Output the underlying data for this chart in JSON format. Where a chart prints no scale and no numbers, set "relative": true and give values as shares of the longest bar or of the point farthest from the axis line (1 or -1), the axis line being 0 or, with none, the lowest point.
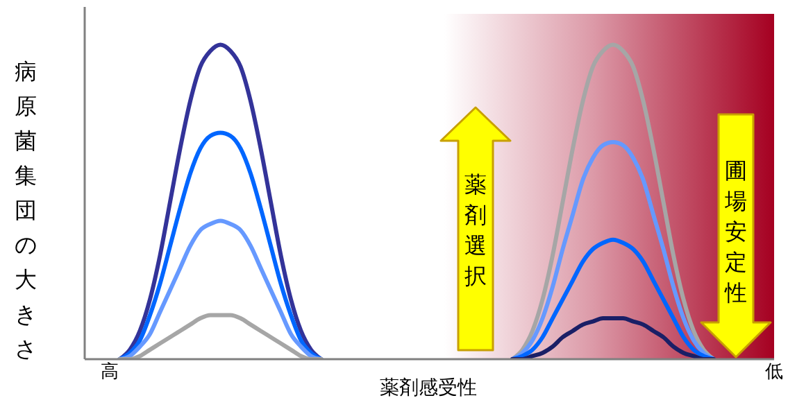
{
  "chart_data": {
    "type": "line",
    "relative": true,
    "ylabel": "病原菌集団の大きさ",
    "xlabel": "薬剤感受性",
    "annotations": [
      "薬剤選択",
      "圃場安定性"
    ],
    "categories": [
      "高",
      null,
      null,
      null,
      null,
      null,
      null,
      null,
      null,
      null,
      null,
      null,
      null,
      null,
      null,
      null,
      null,
      null,
      null,
      null,
      null,
      null,
      null,
      null,
      null,
      null,
      null,
      null,
      null,
      null,
      null,
      null,
      null,
      null,
      null,
      null,
      null,
      null,
      null,
      null,
      null,
      null,
      null,
      null,
      null,
      null,
      null,
      null,
      null,
      null,
      null,
      null,
      null,
      null,
      null,
      null,
      null,
      null,
      null,
      null,
      null,
      null,
      null,
      null,
      null,
      null,
      "低"
    ],
    "series": [
      {
        "color": "#333399",
        "values": [
          null,
          0,
          0.03,
          0.09,
          0.19,
          0.33,
          0.5,
          0.67,
          0.82,
          0.93,
          0.98,
          1,
          0.98,
          0.93,
          0.82,
          0.67,
          0.5,
          0.33,
          0.19,
          0.09,
          0.03,
          0,
          null,
          null,
          null,
          null,
          null,
          null,
          null,
          null,
          null,
          null,
          null,
          null,
          null,
          null,
          null,
          null,
          null,
          null,
          null,
          null,
          null,
          null,
          null,
          null,
          null,
          null,
          null,
          null,
          null,
          null,
          null,
          null,
          null,
          null,
          null,
          null,
          null,
          null,
          null,
          null,
          null,
          null,
          null,
          null,
          null
        ]
      },
      {
        "color": "#0066ff",
        "values": [
          null,
          0,
          0.02,
          0.06,
          0.14,
          0.24,
          0.36,
          0.48,
          0.59,
          0.67,
          0.71,
          0.72,
          0.71,
          0.67,
          0.59,
          0.48,
          0.36,
          0.24,
          0.14,
          0.06,
          0.02,
          0,
          null,
          null,
          null,
          null,
          null,
          null,
          null,
          null,
          null,
          null,
          null,
          null,
          null,
          null,
          null,
          null,
          null,
          null,
          null,
          null,
          null,
          null,
          null,
          null,
          null,
          null,
          null,
          null,
          null,
          null,
          null,
          null,
          null,
          null,
          null,
          null,
          null,
          null,
          null,
          null,
          null,
          null,
          null,
          null,
          null
        ]
      },
      {
        "color": "#6699ff",
        "values": [
          null,
          0,
          0.01,
          0.04,
          0.08,
          0.15,
          0.22,
          0.29,
          0.36,
          0.41,
          0.43,
          0.44,
          0.43,
          0.41,
          0.36,
          0.29,
          0.22,
          0.15,
          0.08,
          0.04,
          0.01,
          0,
          null,
          null,
          null,
          null,
          null,
          null,
          null,
          null,
          null,
          null,
          null,
          null,
          null,
          null,
          null,
          null,
          null,
          null,
          null,
          null,
          null,
          null,
          null,
          null,
          null,
          null,
          null,
          null,
          null,
          null,
          null,
          null,
          null,
          null,
          null,
          null,
          null,
          null,
          null,
          null,
          null,
          null,
          null,
          null,
          null
        ]
      },
      {
        "color": "#a6a6a6",
        "values": [
          null,
          0,
          0,
          0.01,
          0.03,
          0.05,
          0.07,
          0.09,
          0.11,
          0.13,
          0.14,
          0.14,
          0.14,
          0.13,
          0.11,
          0.09,
          0.07,
          0.05,
          0.03,
          0.01,
          0,
          0,
          null,
          null,
          null,
          null,
          null,
          null,
          null,
          null,
          null,
          null,
          null,
          null,
          null,
          null,
          null,
          null,
          null,
          null,
          null,
          null,
          null,
          null,
          null,
          null,
          null,
          null,
          null,
          null,
          null,
          null,
          null,
          null,
          null,
          null,
          null,
          null,
          null,
          null,
          null,
          null,
          null,
          null,
          null,
          null,
          null
        ]
      },
      {
        "color": "#a6a6a6",
        "values": [
          null,
          null,
          null,
          null,
          null,
          null,
          null,
          null,
          null,
          null,
          null,
          null,
          null,
          null,
          null,
          null,
          null,
          null,
          null,
          null,
          null,
          null,
          null,
          null,
          null,
          null,
          null,
          null,
          null,
          null,
          null,
          null,
          null,
          null,
          null,
          null,
          null,
          null,
          null,
          null,
          0,
          0.03,
          0.09,
          0.19,
          0.33,
          0.5,
          0.67,
          0.82,
          0.93,
          0.98,
          1,
          0.98,
          0.93,
          0.82,
          0.67,
          0.5,
          0.33,
          0.19,
          0.09,
          0.03,
          0,
          null,
          null,
          null,
          null,
          null,
          null
        ]
      },
      {
        "color": "#6699ff",
        "values": [
          null,
          null,
          null,
          null,
          null,
          null,
          null,
          null,
          null,
          null,
          null,
          null,
          null,
          null,
          null,
          null,
          null,
          null,
          null,
          null,
          null,
          null,
          null,
          null,
          null,
          null,
          null,
          null,
          null,
          null,
          null,
          null,
          null,
          null,
          null,
          null,
          null,
          null,
          null,
          null,
          0,
          0.02,
          0.06,
          0.13,
          0.23,
          0.35,
          0.46,
          0.57,
          0.64,
          0.68,
          0.69,
          0.68,
          0.64,
          0.57,
          0.46,
          0.35,
          0.23,
          0.13,
          0.06,
          0.02,
          0,
          null,
          null,
          null,
          null,
          null,
          null
        ]
      },
      {
        "color": "#0066ff",
        "values": [
          null,
          null,
          null,
          null,
          null,
          null,
          null,
          null,
          null,
          null,
          null,
          null,
          null,
          null,
          null,
          null,
          null,
          null,
          null,
          null,
          null,
          null,
          null,
          null,
          null,
          null,
          null,
          null,
          null,
          null,
          null,
          null,
          null,
          null,
          null,
          null,
          null,
          null,
          null,
          null,
          0,
          0.01,
          0.03,
          0.07,
          0.13,
          0.19,
          0.25,
          0.31,
          0.35,
          0.37,
          0.38,
          0.37,
          0.35,
          0.31,
          0.25,
          0.19,
          0.13,
          0.07,
          0.03,
          0.01,
          0,
          null,
          null,
          null,
          null,
          null,
          null
        ]
      },
      {
        "color": "#1a1f66",
        "values": [
          null,
          null,
          null,
          null,
          null,
          null,
          null,
          null,
          null,
          null,
          null,
          null,
          null,
          null,
          null,
          null,
          null,
          null,
          null,
          null,
          null,
          null,
          null,
          null,
          null,
          null,
          null,
          null,
          null,
          null,
          null,
          null,
          null,
          null,
          null,
          null,
          null,
          null,
          null,
          null,
          0,
          0,
          0.01,
          0.02,
          0.04,
          0.07,
          0.09,
          0.11,
          0.12,
          0.13,
          0.13,
          0.13,
          0.12,
          0.11,
          0.09,
          0.07,
          0.04,
          0.02,
          0.01,
          0,
          0,
          null,
          null,
          null,
          null,
          null,
          null
        ]
      }
    ]
  }
}
